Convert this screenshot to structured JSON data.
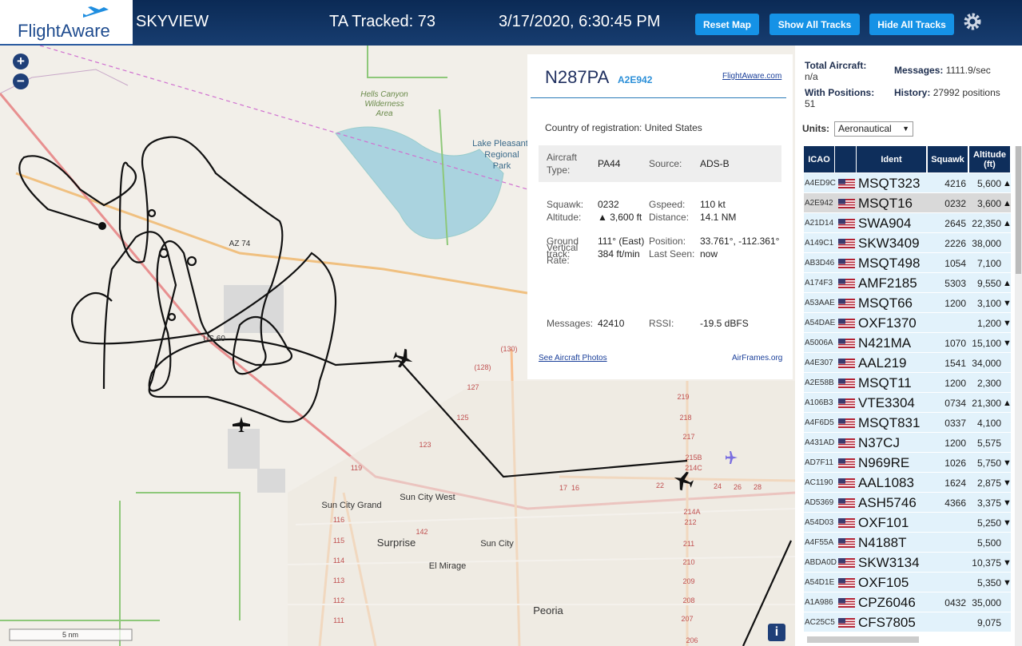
{
  "header": {
    "logo": "FlightAware",
    "app_name": "SKYVIEW",
    "tracked": "TA Tracked: 73",
    "datetime": "3/17/2020, 6:30:45 PM",
    "buttons": [
      "Reset Map",
      "Show All Tracks",
      "Hide All Tracks"
    ]
  },
  "map": {
    "zoom_in": "+",
    "zoom_out": "−",
    "scale": "5 nm",
    "info": "i",
    "labels": [
      "Hells Canyon",
      "Wilderness",
      "Area",
      "Lake Pleasant",
      "Regional",
      "Park",
      "AZ 74",
      "US 60",
      "Sun City Grand",
      "Sun City West",
      "Surprise",
      "Sun City",
      "El Mirage",
      "Peoria",
      "(130)",
      "(128)",
      "127",
      "125",
      "123",
      "119",
      "116",
      "115",
      "114",
      "113",
      "112",
      "111",
      "219",
      "218",
      "217",
      "215B",
      "214C",
      "214A",
      "212",
      "211",
      "210",
      "209",
      "208",
      "207",
      "206",
      "142",
      "17",
      "16",
      "22",
      "24",
      "26",
      "28"
    ]
  },
  "popup": {
    "registration": "N287PA",
    "hex": "A2E942",
    "link": "FlightAware.com",
    "country_label": "Country of registration:",
    "country": "United States",
    "fields": [
      [
        "Aircraft Type:",
        "PA44",
        "Source:",
        "ADS-B"
      ],
      [
        "Squawk:",
        "0232",
        "Gspeed:",
        "110 kt"
      ],
      [
        "Altitude:",
        "▲ 3,600 ft",
        "Distance:",
        "14.1 NM"
      ],
      [
        "Ground track:",
        "111° (East)",
        "Position:",
        "33.761°, -112.361°"
      ],
      [
        "Vertical Rate:",
        "384 ft/min",
        "Last Seen:",
        "now"
      ],
      [
        "Messages:",
        "42410",
        "RSSI:",
        "-19.5 dBFS"
      ]
    ],
    "photos_link": "See Aircraft Photos",
    "airframes_link": "AirFrames.org"
  },
  "sidebar": {
    "stats": [
      [
        "Total Aircraft:",
        "n/a"
      ],
      [
        "Messages:",
        "1111.9/sec"
      ],
      [
        "With Positions:",
        "51"
      ],
      [
        "History:",
        "27992 positions"
      ]
    ],
    "units_label": "Units:",
    "units_value": "Aeronautical",
    "table": {
      "columns": [
        "ICAO",
        "Ident",
        "Squawk",
        "Altitude (ft)"
      ],
      "rows": [
        [
          "A4ED9C",
          "MSQT323",
          "4216",
          "5,600",
          "▲"
        ],
        [
          "A2E942",
          "MSQT16",
          "0232",
          "3,600",
          "▲"
        ],
        [
          "A21D14",
          "SWA904",
          "2645",
          "22,350",
          "▲"
        ],
        [
          "A149C1",
          "SKW3409",
          "2226",
          "38,000",
          null
        ],
        [
          "AB3D46",
          "MSQT498",
          "1054",
          "7,100",
          null
        ],
        [
          "A174F3",
          "AMF2185",
          "5303",
          "9,550",
          "▲"
        ],
        [
          "A53AAE",
          "MSQT66",
          "1200",
          "3,100",
          "▼"
        ],
        [
          "A54DAE",
          "OXF1370",
          null,
          "1,200",
          "▼"
        ],
        [
          "A5006A",
          "N421MA",
          "1070",
          "15,100",
          "▼"
        ],
        [
          "A4E307",
          "AAL219",
          "1541",
          "34,000",
          null
        ],
        [
          "A2E58B",
          "MSQT11",
          "1200",
          "2,300",
          null
        ],
        [
          "A106B3",
          "VTE3304",
          "0734",
          "21,300",
          "▲"
        ],
        [
          "A4F6D5",
          "MSQT831",
          "0337",
          "4,100",
          null
        ],
        [
          "A431AD",
          "N37CJ",
          "1200",
          "5,575",
          null
        ],
        [
          "AD7F11",
          "N969RE",
          "1026",
          "5,750",
          "▼"
        ],
        [
          "AC1190",
          "AAL1083",
          "1624",
          "2,875",
          "▼"
        ],
        [
          "AD5369",
          "ASH5746",
          "4366",
          "3,375",
          "▼"
        ],
        [
          "A54D03",
          "OXF101",
          null,
          "5,250",
          "▼"
        ],
        [
          "A4F55A",
          "N4188T",
          null,
          "5,500",
          null
        ],
        [
          "ABDA0D",
          "SKW3134",
          null,
          "10,375",
          "▼"
        ],
        [
          "A54D1E",
          "OXF105",
          null,
          "5,350",
          "▼"
        ],
        [
          "A1A986",
          "CPZ6046",
          "0432",
          "35,000",
          null
        ],
        [
          "AC25C5",
          "CFS7805",
          null,
          "9,075",
          null
        ]
      ]
    }
  }
}
